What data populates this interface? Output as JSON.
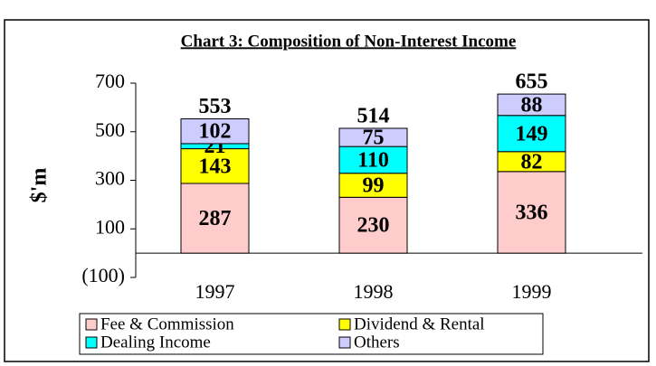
{
  "chart_data": {
    "type": "stacked_bar",
    "title": "Chart 3: Composition of Non-Interest Income",
    "y_label": "$'m",
    "categories": [
      "1997",
      "1998",
      "1999"
    ],
    "series": [
      {
        "name": "Fee & Commission",
        "color": "#ffcccc",
        "values": [
          287,
          230,
          336
        ]
      },
      {
        "name": "Dividend & Rental",
        "color": "#ffff00",
        "values": [
          143,
          99,
          82
        ]
      },
      {
        "name": "Dealing Income",
        "color": "#00ffff",
        "values": [
          21,
          110,
          149
        ]
      },
      {
        "name": "Others",
        "color": "#ccccff",
        "values": [
          102,
          75,
          88
        ]
      }
    ],
    "totals": [
      553,
      514,
      655
    ],
    "ylim": [
      -100,
      700
    ],
    "yticks": [
      {
        "value": -100,
        "label": "(100)"
      },
      100,
      300,
      500,
      700
    ]
  }
}
